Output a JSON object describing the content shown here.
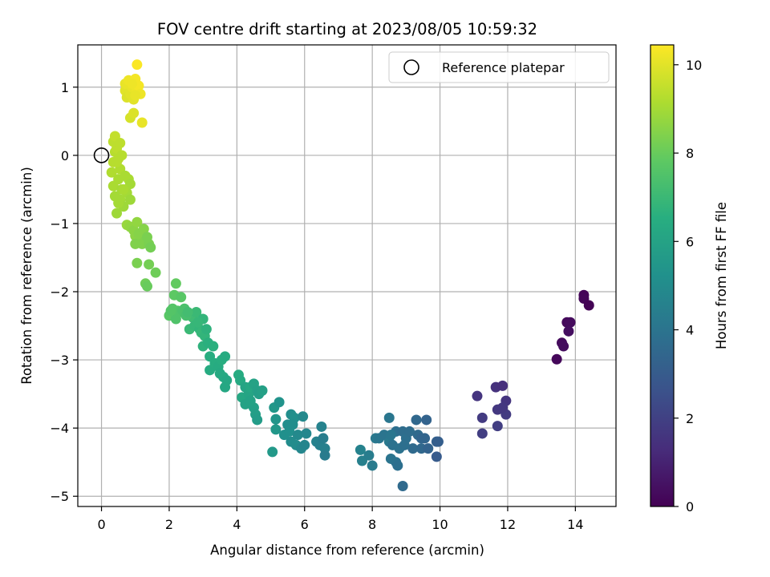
{
  "chart_data": {
    "type": "scatter",
    "title": "FOV centre drift starting at 2023/08/05 10:59:32",
    "xlabel": "Angular distance from reference (arcmin)",
    "ylabel": "Rotation from reference (arcmin)",
    "colorbar_label": "Hours from first FF file",
    "xlim": [
      -0.7,
      15.2
    ],
    "ylim": [
      -5.15,
      1.62
    ],
    "x_ticks": [
      0,
      2,
      4,
      6,
      8,
      10,
      12,
      14
    ],
    "y_ticks": [
      -5,
      -4,
      -3,
      -2,
      -1,
      0,
      1
    ],
    "colorbar_ticks": [
      0,
      2,
      4,
      6,
      8,
      10
    ],
    "colorbar_range": [
      0,
      10.45
    ],
    "colormap": "viridis",
    "grid": true,
    "legend": {
      "position": "top-right",
      "entries": [
        "Reference platepar"
      ]
    },
    "reference_point": {
      "x": 0,
      "y": 0
    },
    "points": [
      {
        "x": 13.45,
        "y": -2.99,
        "t": 0.2
      },
      {
        "x": 13.6,
        "y": -2.75,
        "t": 0.3
      },
      {
        "x": 13.65,
        "y": -2.8,
        "t": 0.35
      },
      {
        "x": 13.75,
        "y": -2.45,
        "t": 0.25
      },
      {
        "x": 13.85,
        "y": -2.45,
        "t": 0.3
      },
      {
        "x": 13.8,
        "y": -2.58,
        "t": 0.4
      },
      {
        "x": 14.25,
        "y": -2.05,
        "t": 0.1
      },
      {
        "x": 14.25,
        "y": -2.1,
        "t": 0.15
      },
      {
        "x": 14.4,
        "y": -2.2,
        "t": 0.05
      },
      {
        "x": 11.1,
        "y": -3.53,
        "t": 1.6
      },
      {
        "x": 11.25,
        "y": -3.85,
        "t": 1.8
      },
      {
        "x": 11.25,
        "y": -4.08,
        "t": 1.9
      },
      {
        "x": 11.65,
        "y": -3.4,
        "t": 1.5
      },
      {
        "x": 11.85,
        "y": -3.38,
        "t": 1.4
      },
      {
        "x": 11.7,
        "y": -3.73,
        "t": 1.7
      },
      {
        "x": 11.7,
        "y": -3.97,
        "t": 1.9
      },
      {
        "x": 11.95,
        "y": -3.6,
        "t": 1.6
      },
      {
        "x": 11.95,
        "y": -3.8,
        "t": 1.8
      },
      {
        "x": 11.85,
        "y": -3.7,
        "t": 1.7
      },
      {
        "x": 7.65,
        "y": -4.32,
        "t": 4.6
      },
      {
        "x": 7.7,
        "y": -4.48,
        "t": 4.5
      },
      {
        "x": 7.9,
        "y": -4.4,
        "t": 4.4
      },
      {
        "x": 8.0,
        "y": -4.55,
        "t": 4.3
      },
      {
        "x": 8.1,
        "y": -4.15,
        "t": 4.2
      },
      {
        "x": 8.2,
        "y": -4.15,
        "t": 4.1
      },
      {
        "x": 8.35,
        "y": -4.1,
        "t": 4.0
      },
      {
        "x": 8.5,
        "y": -3.85,
        "t": 4.1
      },
      {
        "x": 8.5,
        "y": -4.2,
        "t": 4.2
      },
      {
        "x": 8.55,
        "y": -4.45,
        "t": 4.0
      },
      {
        "x": 8.6,
        "y": -4.25,
        "t": 3.9
      },
      {
        "x": 8.7,
        "y": -4.05,
        "t": 3.8
      },
      {
        "x": 8.7,
        "y": -4.5,
        "t": 3.9
      },
      {
        "x": 8.75,
        "y": -4.55,
        "t": 3.8
      },
      {
        "x": 8.8,
        "y": -4.3,
        "t": 3.9
      },
      {
        "x": 8.9,
        "y": -4.05,
        "t": 3.7
      },
      {
        "x": 8.9,
        "y": -4.85,
        "t": 3.6
      },
      {
        "x": 9.0,
        "y": -4.15,
        "t": 3.8
      },
      {
        "x": 9.1,
        "y": -4.05,
        "t": 3.7
      },
      {
        "x": 9.2,
        "y": -4.3,
        "t": 3.6
      },
      {
        "x": 9.3,
        "y": -3.88,
        "t": 3.5
      },
      {
        "x": 9.35,
        "y": -4.1,
        "t": 3.6
      },
      {
        "x": 9.45,
        "y": -4.15,
        "t": 3.4
      },
      {
        "x": 9.45,
        "y": -4.3,
        "t": 3.5
      },
      {
        "x": 9.55,
        "y": -4.15,
        "t": 3.4
      },
      {
        "x": 9.6,
        "y": -3.88,
        "t": 3.3
      },
      {
        "x": 9.65,
        "y": -4.3,
        "t": 3.3
      },
      {
        "x": 9.9,
        "y": -4.2,
        "t": 3.2
      },
      {
        "x": 9.95,
        "y": -4.2,
        "t": 3.1
      },
      {
        "x": 9.9,
        "y": -4.42,
        "t": 3.0
      },
      {
        "x": 8.55,
        "y": -4.1,
        "t": 4.1
      },
      {
        "x": 8.95,
        "y": -4.25,
        "t": 3.8
      },
      {
        "x": 5.05,
        "y": -4.35,
        "t": 5.6
      },
      {
        "x": 5.1,
        "y": -3.7,
        "t": 5.5
      },
      {
        "x": 5.15,
        "y": -3.87,
        "t": 5.4
      },
      {
        "x": 5.15,
        "y": -4.02,
        "t": 5.5
      },
      {
        "x": 5.25,
        "y": -3.62,
        "t": 5.3
      },
      {
        "x": 5.4,
        "y": -4.1,
        "t": 5.2
      },
      {
        "x": 5.5,
        "y": -3.95,
        "t": 5.1
      },
      {
        "x": 5.55,
        "y": -4.05,
        "t": 5.2
      },
      {
        "x": 5.6,
        "y": -3.8,
        "t": 5.1
      },
      {
        "x": 5.6,
        "y": -4.2,
        "t": 5.0
      },
      {
        "x": 5.7,
        "y": -3.85,
        "t": 5.2
      },
      {
        "x": 5.75,
        "y": -4.25,
        "t": 5.0
      },
      {
        "x": 5.8,
        "y": -4.1,
        "t": 4.9
      },
      {
        "x": 5.9,
        "y": -4.3,
        "t": 4.8
      },
      {
        "x": 5.95,
        "y": -3.83,
        "t": 4.9
      },
      {
        "x": 6.0,
        "y": -4.25,
        "t": 4.7
      },
      {
        "x": 6.05,
        "y": -4.08,
        "t": 4.8
      },
      {
        "x": 6.35,
        "y": -4.2,
        "t": 4.6
      },
      {
        "x": 6.45,
        "y": -4.25,
        "t": 4.5
      },
      {
        "x": 6.5,
        "y": -3.98,
        "t": 4.6
      },
      {
        "x": 6.55,
        "y": -4.15,
        "t": 4.4
      },
      {
        "x": 6.6,
        "y": -4.3,
        "t": 4.5
      },
      {
        "x": 6.6,
        "y": -4.4,
        "t": 4.3
      },
      {
        "x": 5.65,
        "y": -3.95,
        "t": 5.1
      },
      {
        "x": 4.05,
        "y": -3.22,
        "t": 6.4
      },
      {
        "x": 4.1,
        "y": -3.3,
        "t": 6.3
      },
      {
        "x": 4.15,
        "y": -3.55,
        "t": 6.2
      },
      {
        "x": 4.25,
        "y": -3.4,
        "t": 6.1
      },
      {
        "x": 4.25,
        "y": -3.65,
        "t": 6.0
      },
      {
        "x": 4.35,
        "y": -3.5,
        "t": 6.1
      },
      {
        "x": 4.4,
        "y": -3.4,
        "t": 6.2
      },
      {
        "x": 4.5,
        "y": -3.35,
        "t": 6.0
      },
      {
        "x": 4.5,
        "y": -3.7,
        "t": 5.9
      },
      {
        "x": 4.55,
        "y": -3.8,
        "t": 5.8
      },
      {
        "x": 4.6,
        "y": -3.45,
        "t": 5.9
      },
      {
        "x": 4.6,
        "y": -3.88,
        "t": 5.7
      },
      {
        "x": 4.65,
        "y": -3.5,
        "t": 5.8
      },
      {
        "x": 4.75,
        "y": -3.45,
        "t": 5.9
      },
      {
        "x": 4.4,
        "y": -3.6,
        "t": 6.0
      },
      {
        "x": 2.6,
        "y": -2.55,
        "t": 7.0
      },
      {
        "x": 2.7,
        "y": -2.38,
        "t": 7.1
      },
      {
        "x": 2.75,
        "y": -2.5,
        "t": 6.9
      },
      {
        "x": 2.8,
        "y": -2.3,
        "t": 7.0
      },
      {
        "x": 2.9,
        "y": -2.55,
        "t": 6.8
      },
      {
        "x": 2.95,
        "y": -2.6,
        "t": 6.9
      },
      {
        "x": 3.0,
        "y": -2.4,
        "t": 6.8
      },
      {
        "x": 3.0,
        "y": -2.8,
        "t": 6.7
      },
      {
        "x": 3.05,
        "y": -2.65,
        "t": 6.8
      },
      {
        "x": 3.1,
        "y": -2.55,
        "t": 6.7
      },
      {
        "x": 3.15,
        "y": -2.75,
        "t": 6.6
      },
      {
        "x": 3.2,
        "y": -2.95,
        "t": 6.5
      },
      {
        "x": 3.2,
        "y": -3.15,
        "t": 6.4
      },
      {
        "x": 3.3,
        "y": -2.8,
        "t": 6.6
      },
      {
        "x": 3.35,
        "y": -3.05,
        "t": 6.5
      },
      {
        "x": 3.45,
        "y": -3.1,
        "t": 6.4
      },
      {
        "x": 3.5,
        "y": -3.2,
        "t": 6.3
      },
      {
        "x": 3.55,
        "y": -3.0,
        "t": 6.5
      },
      {
        "x": 3.6,
        "y": -3.25,
        "t": 6.3
      },
      {
        "x": 3.65,
        "y": -3.4,
        "t": 6.2
      },
      {
        "x": 3.7,
        "y": -3.3,
        "t": 6.2
      },
      {
        "x": 3.65,
        "y": -2.95,
        "t": 6.4
      },
      {
        "x": 2.85,
        "y": -2.45,
        "t": 6.9
      },
      {
        "x": 2.0,
        "y": -2.35,
        "t": 7.7
      },
      {
        "x": 2.1,
        "y": -2.25,
        "t": 7.6
      },
      {
        "x": 2.15,
        "y": -2.05,
        "t": 7.8
      },
      {
        "x": 2.2,
        "y": -2.4,
        "t": 7.5
      },
      {
        "x": 2.2,
        "y": -1.88,
        "t": 7.9
      },
      {
        "x": 2.25,
        "y": -2.28,
        "t": 7.6
      },
      {
        "x": 2.3,
        "y": -2.3,
        "t": 7.5
      },
      {
        "x": 2.35,
        "y": -2.08,
        "t": 7.7
      },
      {
        "x": 2.4,
        "y": -2.28,
        "t": 7.4
      },
      {
        "x": 2.45,
        "y": -2.25,
        "t": 7.4
      },
      {
        "x": 2.5,
        "y": -2.35,
        "t": 7.3
      },
      {
        "x": 2.55,
        "y": -2.3,
        "t": 7.2
      },
      {
        "x": 2.05,
        "y": -2.28,
        "t": 7.6
      },
      {
        "x": 1.05,
        "y": -1.58,
        "t": 8.3
      },
      {
        "x": 1.3,
        "y": -1.88,
        "t": 8.1
      },
      {
        "x": 1.35,
        "y": -1.92,
        "t": 8.0
      },
      {
        "x": 1.4,
        "y": -1.6,
        "t": 8.2
      },
      {
        "x": 1.6,
        "y": -1.72,
        "t": 8.1
      },
      {
        "x": 0.75,
        "y": -1.02,
        "t": 8.8
      },
      {
        "x": 0.85,
        "y": -1.05,
        "t": 8.7
      },
      {
        "x": 0.95,
        "y": -1.1,
        "t": 8.6
      },
      {
        "x": 1.0,
        "y": -1.18,
        "t": 8.6
      },
      {
        "x": 1.05,
        "y": -0.98,
        "t": 8.7
      },
      {
        "x": 1.1,
        "y": -1.15,
        "t": 8.5
      },
      {
        "x": 1.15,
        "y": -1.22,
        "t": 8.5
      },
      {
        "x": 1.2,
        "y": -1.3,
        "t": 8.4
      },
      {
        "x": 1.25,
        "y": -1.08,
        "t": 8.5
      },
      {
        "x": 1.3,
        "y": -1.25,
        "t": 8.4
      },
      {
        "x": 1.35,
        "y": -1.2,
        "t": 8.3
      },
      {
        "x": 1.4,
        "y": -1.3,
        "t": 8.3
      },
      {
        "x": 1.45,
        "y": -1.35,
        "t": 8.2
      },
      {
        "x": 1.0,
        "y": -1.3,
        "t": 8.4
      },
      {
        "x": 0.3,
        "y": -0.25,
        "t": 9.2
      },
      {
        "x": 0.35,
        "y": -0.1,
        "t": 9.3
      },
      {
        "x": 0.35,
        "y": -0.45,
        "t": 9.1
      },
      {
        "x": 0.4,
        "y": -0.6,
        "t": 9.0
      },
      {
        "x": 0.45,
        "y": -0.85,
        "t": 8.9
      },
      {
        "x": 0.5,
        "y": -0.35,
        "t": 9.1
      },
      {
        "x": 0.55,
        "y": -0.65,
        "t": 9.0
      },
      {
        "x": 0.55,
        "y": -0.2,
        "t": 9.2
      },
      {
        "x": 0.6,
        "y": -0.5,
        "t": 9.0
      },
      {
        "x": 0.65,
        "y": -0.75,
        "t": 8.9
      },
      {
        "x": 0.7,
        "y": -0.3,
        "t": 9.1
      },
      {
        "x": 0.75,
        "y": -0.55,
        "t": 9.0
      },
      {
        "x": 0.8,
        "y": -0.35,
        "t": 9.1
      },
      {
        "x": 0.85,
        "y": -0.65,
        "t": 8.9
      },
      {
        "x": 0.85,
        "y": -0.42,
        "t": 9.0
      },
      {
        "x": 0.5,
        "y": -0.7,
        "t": 9.0
      },
      {
        "x": 0.65,
        "y": -0.5,
        "t": 9.1
      },
      {
        "x": 0.35,
        "y": 0.2,
        "t": 9.4
      },
      {
        "x": 0.4,
        "y": 0.28,
        "t": 9.5
      },
      {
        "x": 0.4,
        "y": 0.05,
        "t": 9.3
      },
      {
        "x": 0.45,
        "y": 0.1,
        "t": 9.4
      },
      {
        "x": 0.5,
        "y": -0.05,
        "t": 9.3
      },
      {
        "x": 0.55,
        "y": 0.18,
        "t": 9.4
      },
      {
        "x": 0.6,
        "y": 0.0,
        "t": 9.3
      },
      {
        "x": 0.45,
        "y": -0.1,
        "t": 9.3
      },
      {
        "x": 0.7,
        "y": 0.95,
        "t": 10.0
      },
      {
        "x": 0.7,
        "y": 1.05,
        "t": 10.1
      },
      {
        "x": 0.75,
        "y": 0.85,
        "t": 9.9
      },
      {
        "x": 0.8,
        "y": 1.1,
        "t": 10.2
      },
      {
        "x": 0.85,
        "y": 0.9,
        "t": 10.0
      },
      {
        "x": 0.85,
        "y": 0.55,
        "t": 9.8
      },
      {
        "x": 0.9,
        "y": 1.0,
        "t": 10.1
      },
      {
        "x": 0.95,
        "y": 0.82,
        "t": 10.0
      },
      {
        "x": 0.95,
        "y": 0.62,
        "t": 9.9
      },
      {
        "x": 1.0,
        "y": 1.12,
        "t": 10.3
      },
      {
        "x": 1.05,
        "y": 1.33,
        "t": 10.4
      },
      {
        "x": 1.05,
        "y": 0.95,
        "t": 10.2
      },
      {
        "x": 1.1,
        "y": 1.02,
        "t": 10.3
      },
      {
        "x": 1.15,
        "y": 0.9,
        "t": 10.2
      },
      {
        "x": 1.2,
        "y": 0.48,
        "t": 10.1
      },
      {
        "x": 0.9,
        "y": 1.05,
        "t": 10.2
      },
      {
        "x": 1.0,
        "y": 0.88,
        "t": 10.1
      }
    ]
  }
}
